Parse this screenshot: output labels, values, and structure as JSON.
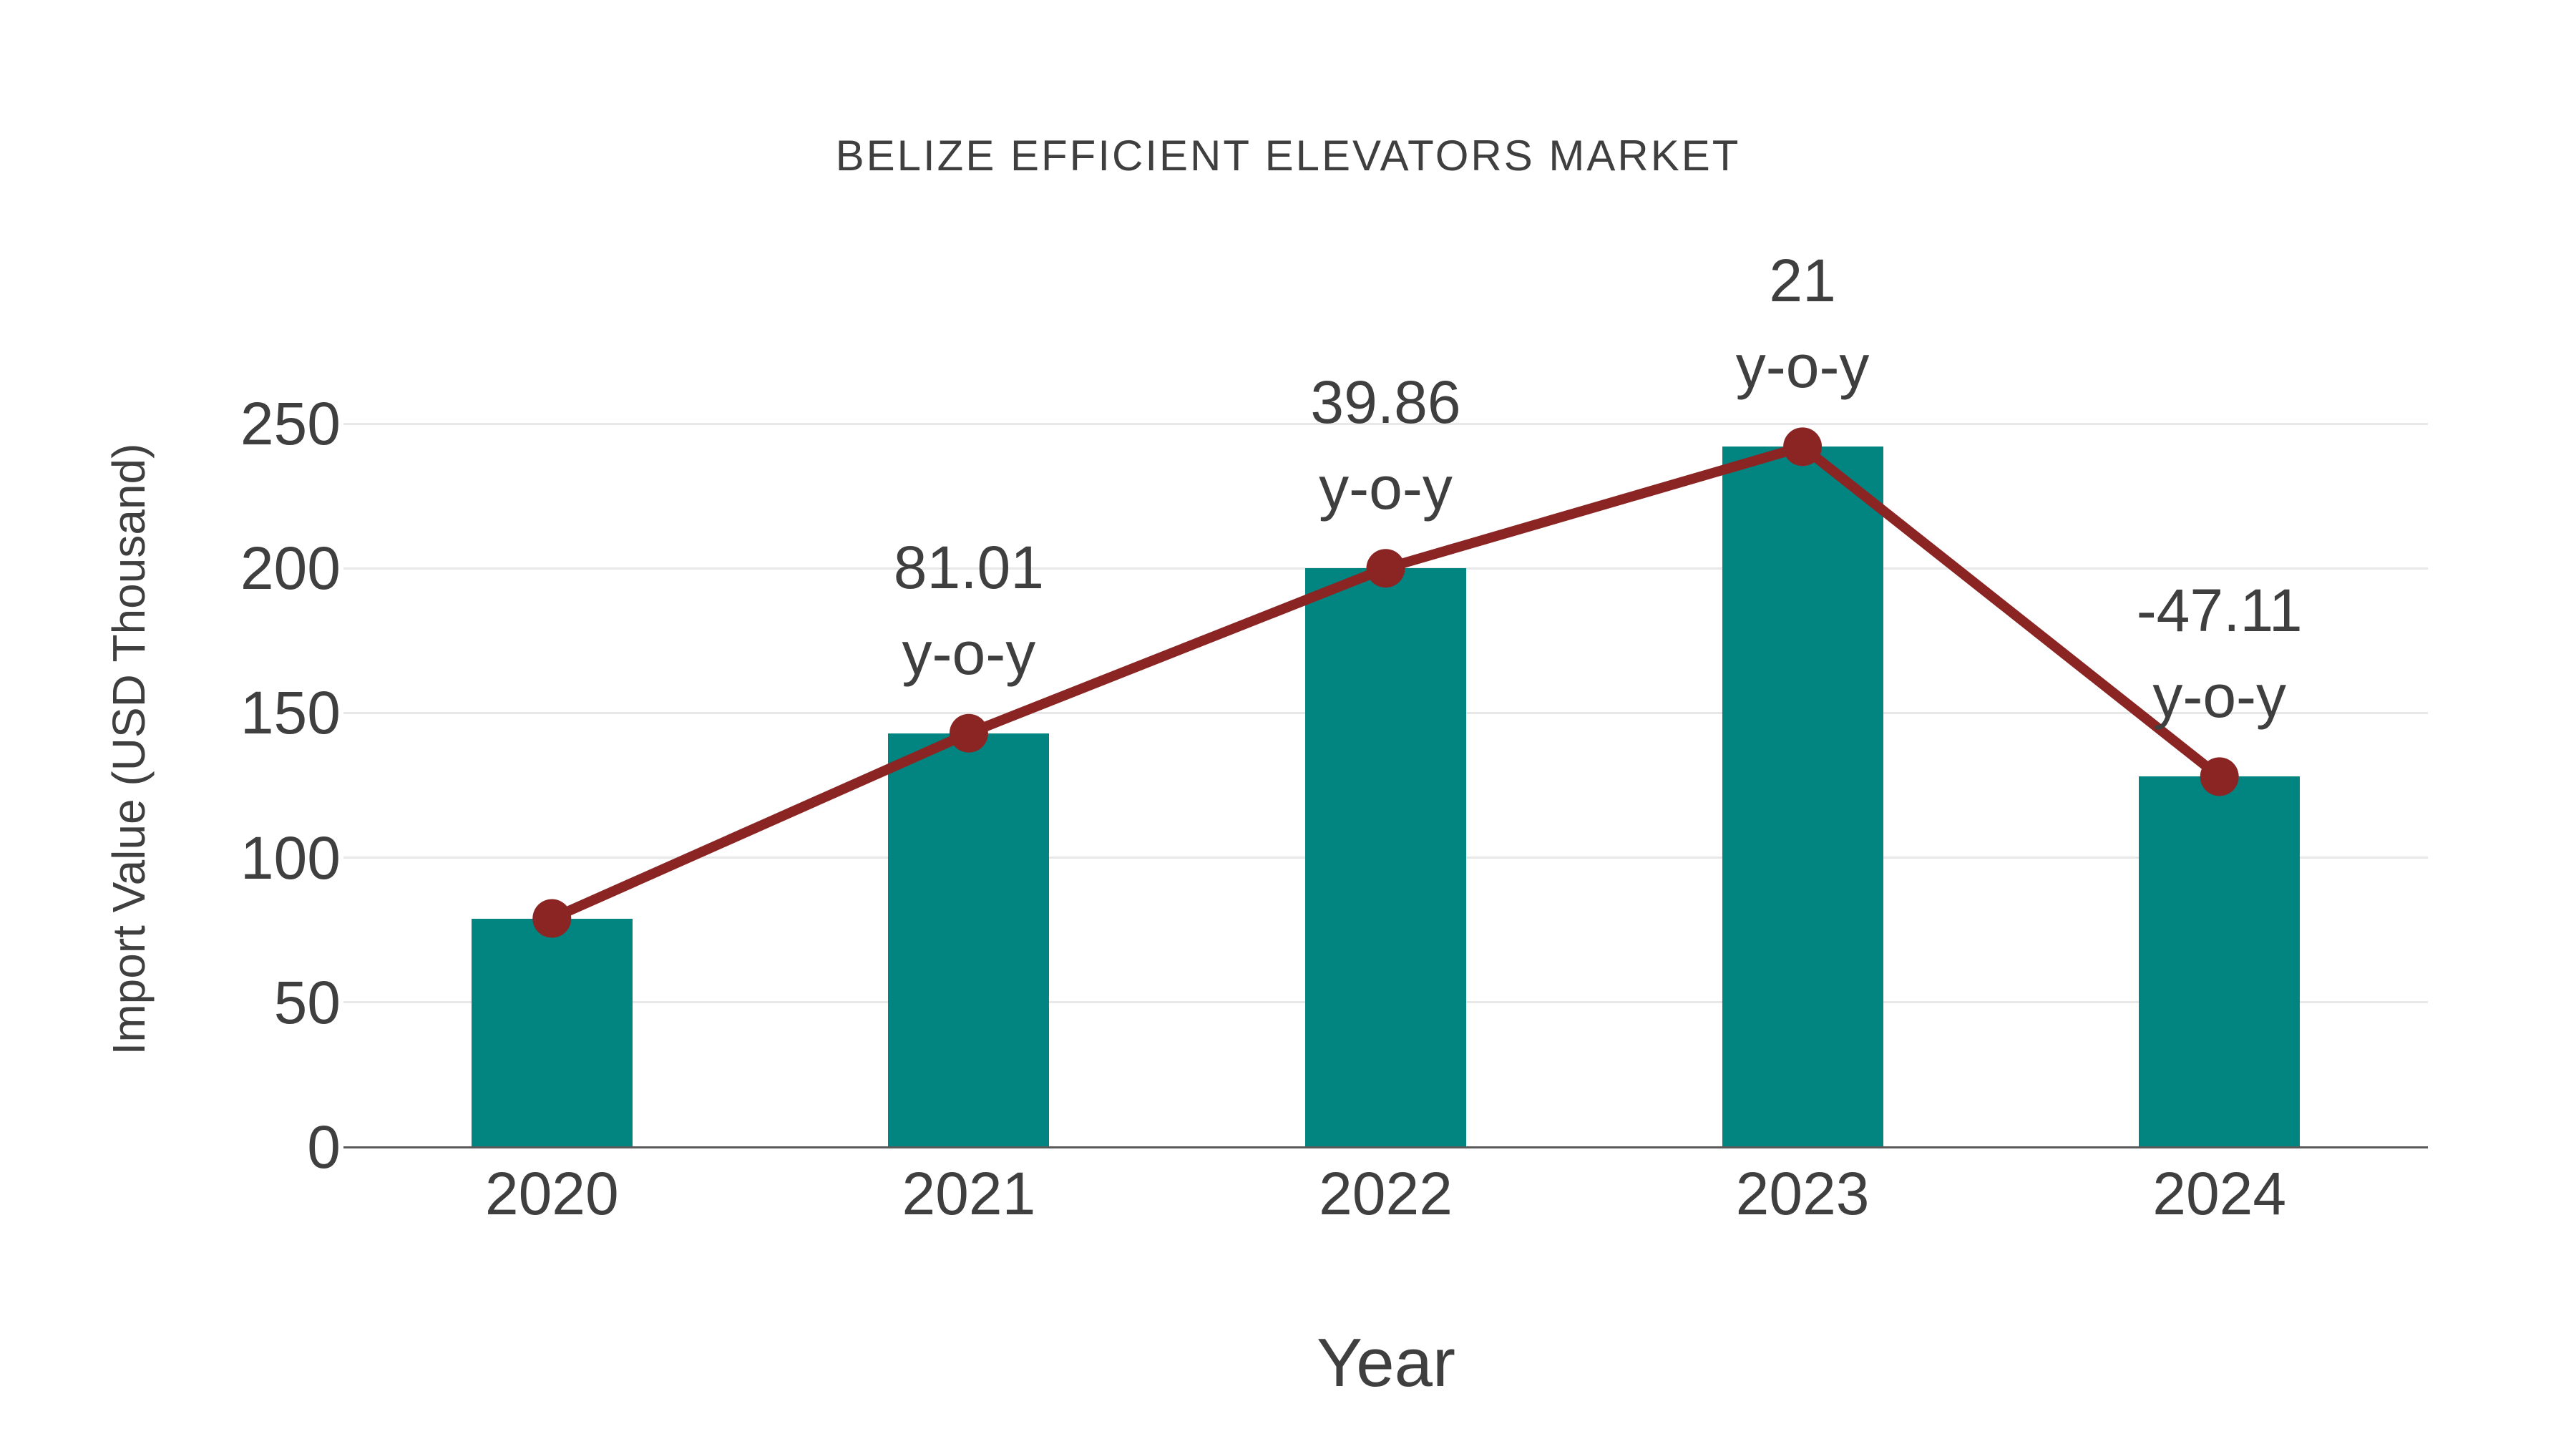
{
  "chart_data": {
    "type": "bar",
    "title": "BELIZE EFFICIENT ELEVATORS MARKET",
    "xlabel": "Year",
    "ylabel": "Import Value (USD Thousand)",
    "categories": [
      "2020",
      "2021",
      "2022",
      "2023",
      "2024"
    ],
    "values": [
      79,
      143,
      200,
      242,
      128
    ],
    "line_overlay": {
      "name": "trend-line",
      "values": [
        79,
        143,
        200,
        242,
        128
      ],
      "point_labels": [
        null,
        "81.01",
        "39.86",
        "21",
        "-47.11"
      ],
      "point_label_suffix": "y-o-y"
    },
    "ylim": [
      0,
      250
    ],
    "yticks": [
      0,
      50,
      100,
      150,
      200,
      250
    ],
    "grid": "horizontal",
    "legend": "none",
    "colors": {
      "bar": "#028480",
      "line": "#8b2524",
      "text": "#3f3f3f",
      "grid": "#e8e8e8",
      "axis": "#5a5a5a",
      "background": "#ffffff"
    }
  }
}
